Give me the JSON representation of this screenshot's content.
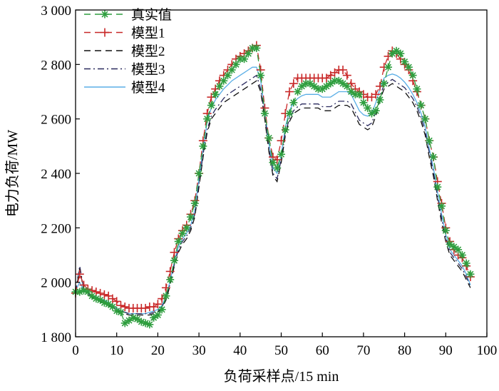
{
  "chart_data": {
    "type": "line",
    "xlabel": "负荷采样点/15 min",
    "ylabel": "电力负荷/MW",
    "xlim": [
      0,
      100
    ],
    "ylim": [
      1800,
      3000
    ],
    "xticks": [
      0,
      10,
      20,
      30,
      40,
      50,
      60,
      70,
      80,
      90,
      100
    ],
    "xtick_labels": [
      "0",
      "10",
      "20",
      "30",
      "40",
      "50",
      "60",
      "70",
      "80",
      "90",
      "100"
    ],
    "yticks": [
      1800,
      2000,
      2200,
      2400,
      2600,
      2800,
      3000
    ],
    "ytick_labels": [
      "1 800",
      "2 000",
      "2 200",
      "2 400",
      "2 600",
      "2 800",
      "3 000"
    ],
    "grid": false,
    "legend_position": "top-left",
    "series": [
      {
        "name": "真实值",
        "color": "#2e9e3e",
        "line_style": "dashed",
        "marker": "asterisk",
        "x": [
          0,
          1,
          2,
          3,
          4,
          5,
          6,
          7,
          8,
          9,
          10,
          11,
          12,
          13,
          14,
          15,
          16,
          17,
          18,
          19,
          20,
          21,
          22,
          23,
          24,
          25,
          26,
          27,
          28,
          29,
          30,
          31,
          32,
          33,
          34,
          35,
          36,
          37,
          38,
          39,
          40,
          41,
          42,
          43,
          44,
          45,
          46,
          47,
          48,
          49,
          50,
          51,
          52,
          53,
          54,
          55,
          56,
          57,
          58,
          59,
          60,
          61,
          62,
          63,
          64,
          65,
          66,
          67,
          68,
          69,
          70,
          71,
          72,
          73,
          74,
          75,
          76,
          77,
          78,
          79,
          80,
          81,
          82,
          83,
          84,
          85,
          86,
          87,
          88,
          89,
          90,
          91,
          92,
          93,
          94,
          95,
          96
        ],
        "y": [
          1965,
          1965,
          1970,
          1965,
          1950,
          1940,
          1935,
          1925,
          1920,
          1910,
          1895,
          1890,
          1850,
          1860,
          1870,
          1865,
          1855,
          1850,
          1845,
          1870,
          1880,
          1900,
          1950,
          2010,
          2080,
          2150,
          2180,
          2200,
          2240,
          2290,
          2400,
          2500,
          2600,
          2650,
          2690,
          2720,
          2740,
          2760,
          2780,
          2800,
          2820,
          2820,
          2840,
          2860,
          2860,
          2760,
          2620,
          2530,
          2440,
          2420,
          2470,
          2560,
          2620,
          2660,
          2700,
          2720,
          2730,
          2730,
          2720,
          2710,
          2710,
          2720,
          2730,
          2740,
          2740,
          2730,
          2720,
          2700,
          2690,
          2690,
          2660,
          2640,
          2620,
          2630,
          2670,
          2730,
          2790,
          2840,
          2850,
          2840,
          2810,
          2790,
          2760,
          2710,
          2650,
          2600,
          2520,
          2460,
          2350,
          2280,
          2190,
          2140,
          2130,
          2120,
          2100,
          2070,
          2030
        ]
      },
      {
        "name": "模型1",
        "color": "#c82828",
        "line_style": "dashed",
        "marker": "plus",
        "x": [
          0,
          1,
          2,
          3,
          4,
          5,
          6,
          7,
          8,
          9,
          10,
          11,
          12,
          13,
          14,
          15,
          16,
          17,
          18,
          19,
          20,
          21,
          22,
          23,
          24,
          25,
          26,
          27,
          28,
          29,
          30,
          31,
          32,
          33,
          34,
          35,
          36,
          37,
          38,
          39,
          40,
          41,
          42,
          43,
          44,
          45,
          46,
          47,
          48,
          49,
          50,
          51,
          52,
          53,
          54,
          55,
          56,
          57,
          58,
          59,
          60,
          61,
          62,
          63,
          64,
          65,
          66,
          67,
          68,
          69,
          70,
          71,
          72,
          73,
          74,
          75,
          76,
          77,
          78,
          79,
          80,
          81,
          82,
          83,
          84,
          85,
          86,
          87,
          88,
          89,
          90,
          91,
          92,
          93,
          94,
          95,
          96
        ],
        "y": [
          1960,
          2030,
          1990,
          1975,
          1970,
          1965,
          1960,
          1955,
          1950,
          1940,
          1930,
          1915,
          1910,
          1905,
          1905,
          1905,
          1905,
          1905,
          1910,
          1910,
          1920,
          1940,
          1980,
          2040,
          2110,
          2160,
          2190,
          2210,
          2250,
          2300,
          2400,
          2520,
          2620,
          2680,
          2710,
          2740,
          2760,
          2780,
          2800,
          2820,
          2830,
          2840,
          2850,
          2860,
          2870,
          2780,
          2640,
          2530,
          2460,
          2450,
          2520,
          2620,
          2700,
          2730,
          2750,
          2750,
          2750,
          2750,
          2750,
          2750,
          2750,
          2750,
          2760,
          2770,
          2780,
          2780,
          2760,
          2730,
          2710,
          2700,
          2690,
          2680,
          2680,
          2690,
          2720,
          2790,
          2830,
          2850,
          2840,
          2820,
          2800,
          2780,
          2740,
          2700,
          2650,
          2600,
          2520,
          2460,
          2370,
          2290,
          2200,
          2150,
          2120,
          2100,
          2090,
          2060,
          2020
        ]
      },
      {
        "name": "模型2",
        "color": "#111111",
        "line_style": "dashed",
        "marker": "none",
        "x": [
          0,
          1,
          2,
          3,
          4,
          5,
          6,
          7,
          8,
          9,
          10,
          11,
          12,
          13,
          14,
          15,
          16,
          17,
          18,
          19,
          20,
          21,
          22,
          23,
          24,
          25,
          26,
          27,
          28,
          29,
          30,
          31,
          32,
          33,
          34,
          35,
          36,
          37,
          38,
          39,
          40,
          41,
          42,
          43,
          44,
          45,
          46,
          47,
          48,
          49,
          50,
          51,
          52,
          53,
          54,
          55,
          56,
          57,
          58,
          59,
          60,
          61,
          62,
          63,
          64,
          65,
          66,
          67,
          68,
          69,
          70,
          71,
          72,
          73,
          74,
          75,
          76,
          77,
          78,
          79,
          80,
          81,
          82,
          83,
          84,
          85,
          86,
          87,
          88,
          89,
          90,
          91,
          92,
          93,
          94,
          95,
          96
        ],
        "y": [
          1960,
          2050,
          1970,
          1955,
          1945,
          1935,
          1930,
          1925,
          1915,
          1905,
          1895,
          1890,
          1885,
          1880,
          1880,
          1880,
          1880,
          1880,
          1880,
          1885,
          1890,
          1905,
          1935,
          1990,
          2060,
          2110,
          2140,
          2160,
          2190,
          2240,
          2350,
          2460,
          2550,
          2600,
          2620,
          2640,
          2660,
          2670,
          2680,
          2690,
          2700,
          2710,
          2720,
          2730,
          2740,
          2700,
          2600,
          2480,
          2390,
          2370,
          2440,
          2540,
          2590,
          2620,
          2630,
          2640,
          2640,
          2640,
          2640,
          2640,
          2630,
          2630,
          2630,
          2640,
          2650,
          2650,
          2650,
          2640,
          2610,
          2580,
          2570,
          2560,
          2570,
          2610,
          2670,
          2710,
          2720,
          2730,
          2720,
          2710,
          2700,
          2680,
          2660,
          2630,
          2590,
          2540,
          2460,
          2390,
          2300,
          2220,
          2150,
          2100,
          2080,
          2060,
          2040,
          2010,
          1980
        ]
      },
      {
        "name": "模型3",
        "color": "#2a2a5e",
        "line_style": "dashdot",
        "marker": "none",
        "x": [
          0,
          1,
          2,
          3,
          4,
          5,
          6,
          7,
          8,
          9,
          10,
          11,
          12,
          13,
          14,
          15,
          16,
          17,
          18,
          19,
          20,
          21,
          22,
          23,
          24,
          25,
          26,
          27,
          28,
          29,
          30,
          31,
          32,
          33,
          34,
          35,
          36,
          37,
          38,
          39,
          40,
          41,
          42,
          43,
          44,
          45,
          46,
          47,
          48,
          49,
          50,
          51,
          52,
          53,
          54,
          55,
          56,
          57,
          58,
          59,
          60,
          61,
          62,
          63,
          64,
          65,
          66,
          67,
          68,
          69,
          70,
          71,
          72,
          73,
          74,
          75,
          76,
          77,
          78,
          79,
          80,
          81,
          82,
          83,
          84,
          85,
          86,
          87,
          88,
          89,
          90,
          91,
          92,
          93,
          94,
          95,
          96
        ],
        "y": [
          1965,
          2060,
          1975,
          1960,
          1950,
          1940,
          1935,
          1930,
          1920,
          1910,
          1900,
          1895,
          1890,
          1885,
          1885,
          1885,
          1885,
          1885,
          1885,
          1890,
          1895,
          1910,
          1940,
          1995,
          2065,
          2120,
          2150,
          2170,
          2200,
          2250,
          2360,
          2470,
          2560,
          2610,
          2635,
          2655,
          2675,
          2690,
          2700,
          2710,
          2720,
          2730,
          2740,
          2750,
          2760,
          2710,
          2610,
          2490,
          2400,
          2380,
          2450,
          2550,
          2600,
          2630,
          2645,
          2655,
          2655,
          2655,
          2655,
          2655,
          2645,
          2645,
          2645,
          2655,
          2665,
          2665,
          2665,
          2655,
          2625,
          2595,
          2585,
          2575,
          2585,
          2625,
          2685,
          2725,
          2735,
          2745,
          2735,
          2725,
          2715,
          2695,
          2675,
          2645,
          2605,
          2555,
          2475,
          2405,
          2315,
          2235,
          2165,
          2110,
          2090,
          2070,
          2050,
          2020,
          1985
        ]
      },
      {
        "name": "模型4",
        "color": "#5aaee6",
        "line_style": "solid",
        "marker": "none",
        "x": [
          0,
          1,
          2,
          3,
          4,
          5,
          6,
          7,
          8,
          9,
          10,
          11,
          12,
          13,
          14,
          15,
          16,
          17,
          18,
          19,
          20,
          21,
          22,
          23,
          24,
          25,
          26,
          27,
          28,
          29,
          30,
          31,
          32,
          33,
          34,
          35,
          36,
          37,
          38,
          39,
          40,
          41,
          42,
          43,
          44,
          45,
          46,
          47,
          48,
          49,
          50,
          51,
          52,
          53,
          54,
          55,
          56,
          57,
          58,
          59,
          60,
          61,
          62,
          63,
          64,
          65,
          66,
          67,
          68,
          69,
          70,
          71,
          72,
          73,
          74,
          75,
          76,
          77,
          78,
          79,
          80,
          81,
          82,
          83,
          84,
          85,
          86,
          87,
          88,
          89,
          90,
          91,
          92,
          93,
          94,
          95,
          96
        ],
        "y": [
          1970,
          2000,
          1970,
          1960,
          1950,
          1945,
          1940,
          1935,
          1925,
          1915,
          1905,
          1895,
          1890,
          1885,
          1885,
          1885,
          1885,
          1885,
          1890,
          1895,
          1900,
          1915,
          1950,
          2005,
          2075,
          2130,
          2160,
          2180,
          2210,
          2265,
          2380,
          2490,
          2590,
          2640,
          2670,
          2690,
          2710,
          2725,
          2740,
          2750,
          2760,
          2770,
          2780,
          2790,
          2790,
          2740,
          2630,
          2510,
          2420,
          2400,
          2470,
          2570,
          2630,
          2660,
          2675,
          2685,
          2690,
          2690,
          2690,
          2690,
          2680,
          2680,
          2680,
          2690,
          2700,
          2700,
          2700,
          2690,
          2660,
          2630,
          2615,
          2610,
          2620,
          2660,
          2710,
          2750,
          2760,
          2765,
          2760,
          2750,
          2735,
          2715,
          2690,
          2660,
          2620,
          2570,
          2490,
          2420,
          2330,
          2250,
          2175,
          2120,
          2100,
          2080,
          2060,
          2030,
          1990
        ]
      }
    ]
  }
}
